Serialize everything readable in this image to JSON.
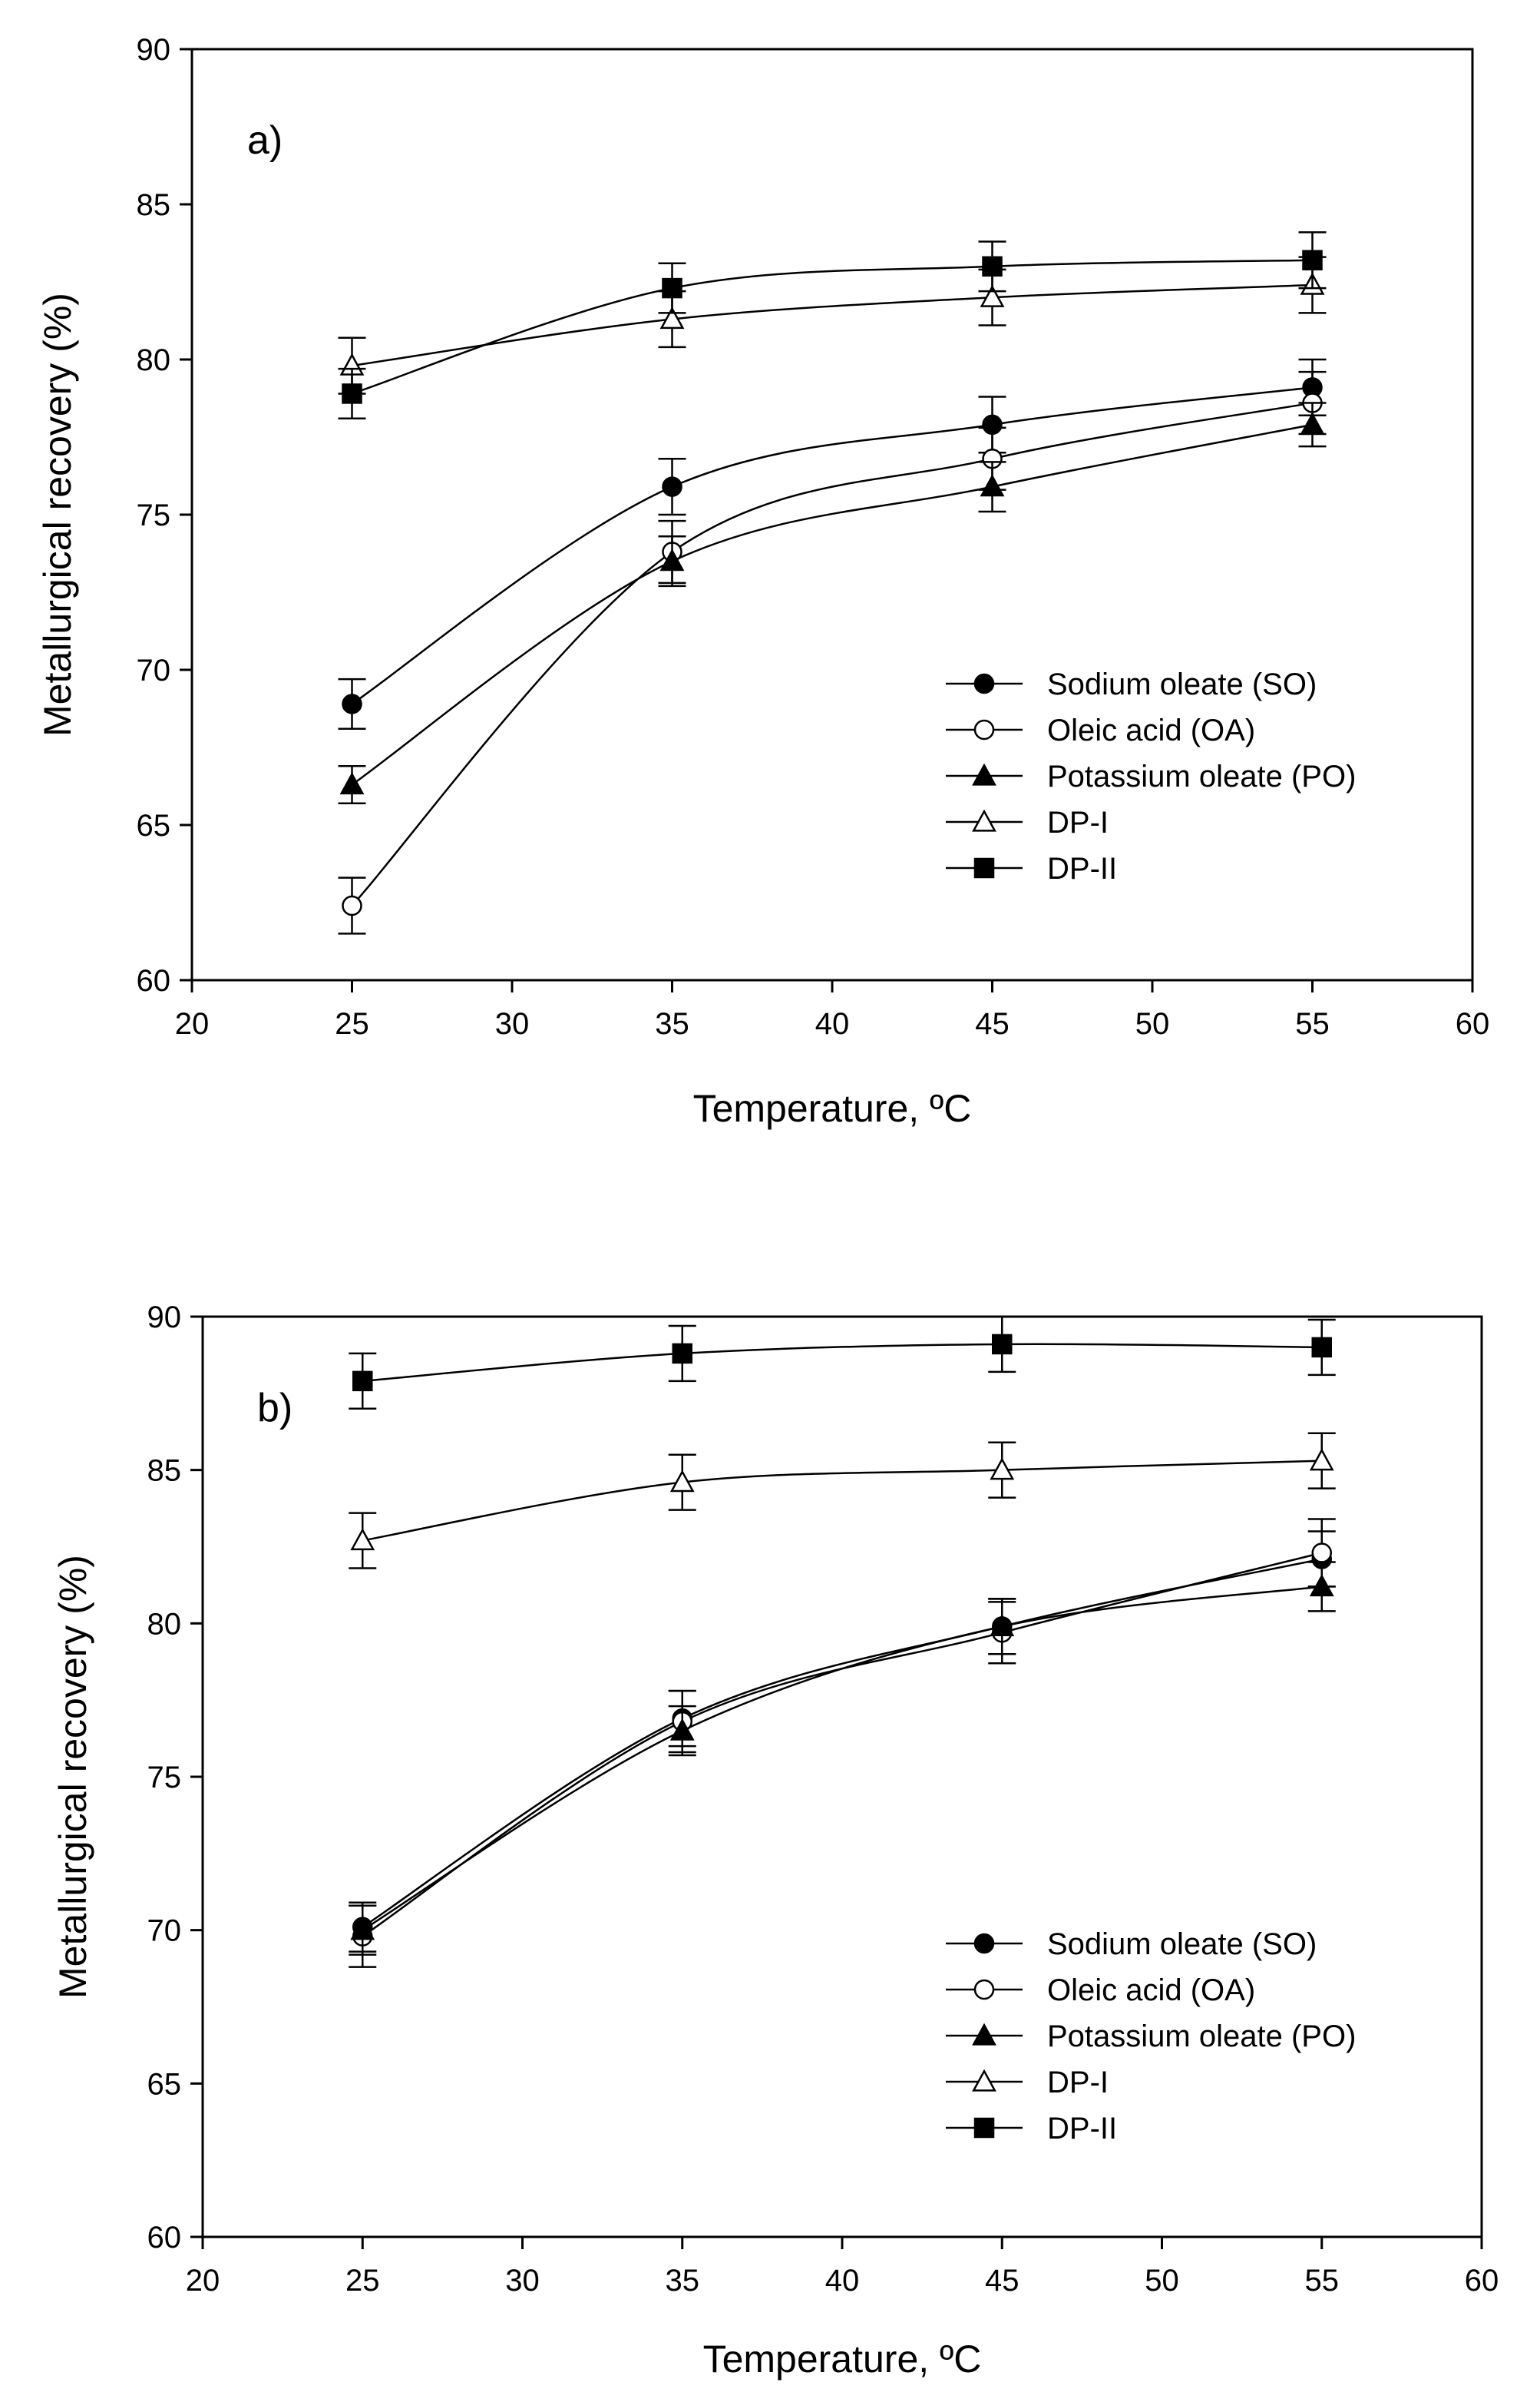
{
  "chart_data": [
    {
      "type": "line",
      "title": "",
      "panel_label": "a)",
      "xlabel": "Temperature, ºC",
      "ylabel": "Metallurgical recovery (%)",
      "xlim": [
        20,
        60
      ],
      "ylim": [
        60,
        90
      ],
      "xticks": [
        20,
        25,
        30,
        35,
        40,
        45,
        50,
        55,
        60
      ],
      "yticks": [
        60,
        65,
        70,
        75,
        80,
        85,
        90
      ],
      "x": [
        25,
        35,
        45,
        55
      ],
      "grid": false,
      "legend_position": "bottom-right",
      "series": [
        {
          "name": "Sodium oleate (SO)",
          "marker": "filled-circle",
          "values": [
            68.9,
            75.9,
            77.9,
            79.1
          ],
          "error": [
            0.8,
            0.9,
            0.9,
            0.9
          ]
        },
        {
          "name": "Oleic acid (OA)",
          "marker": "open-circle",
          "values": [
            62.4,
            73.8,
            76.8,
            78.6
          ],
          "error": [
            0.9,
            1.0,
            1.0,
            1.0
          ]
        },
        {
          "name": "Potassium oleate (PO)",
          "marker": "filled-triangle",
          "values": [
            66.3,
            73.5,
            75.9,
            77.9
          ],
          "error": [
            0.6,
            0.8,
            0.8,
            0.7
          ]
        },
        {
          "name": "DP-I",
          "marker": "open-triangle",
          "values": [
            79.8,
            81.3,
            82.0,
            82.4
          ],
          "error": [
            0.9,
            0.9,
            0.9,
            0.9
          ]
        },
        {
          "name": "DP-II",
          "marker": "filled-square",
          "values": [
            78.9,
            82.3,
            83.0,
            83.2
          ],
          "error": [
            0.8,
            0.8,
            0.8,
            0.9
          ]
        }
      ]
    },
    {
      "type": "line",
      "title": "",
      "panel_label": "b)",
      "xlabel": "Temperature, ºC",
      "ylabel": "Metallurgical recovery (%)",
      "xlim": [
        20,
        60
      ],
      "ylim": [
        60,
        90
      ],
      "xticks": [
        20,
        25,
        30,
        35,
        40,
        45,
        50,
        55,
        60
      ],
      "yticks": [
        60,
        65,
        70,
        75,
        80,
        85,
        90
      ],
      "x": [
        25,
        35,
        45,
        55
      ],
      "grid": false,
      "legend_position": "bottom-right",
      "series": [
        {
          "name": "Sodium oleate (SO)",
          "marker": "filled-circle",
          "values": [
            70.1,
            76.9,
            79.9,
            82.1
          ],
          "error": [
            0.8,
            0.9,
            0.9,
            0.9
          ]
        },
        {
          "name": "Oleic acid (OA)",
          "marker": "open-circle",
          "values": [
            69.8,
            76.8,
            79.7,
            82.3
          ],
          "error": [
            1.0,
            1.0,
            1.0,
            1.1
          ]
        },
        {
          "name": "Potassium oleate (PO)",
          "marker": "filled-triangle",
          "values": [
            70.0,
            76.5,
            79.9,
            81.2
          ],
          "error": [
            0.8,
            0.8,
            0.9,
            0.8
          ]
        },
        {
          "name": "DP-I",
          "marker": "open-triangle",
          "values": [
            82.7,
            84.6,
            85.0,
            85.3
          ],
          "error": [
            0.9,
            0.9,
            0.9,
            0.9
          ]
        },
        {
          "name": "DP-II",
          "marker": "filled-square",
          "values": [
            87.9,
            88.8,
            89.1,
            89.0
          ],
          "error": [
            0.9,
            0.9,
            0.9,
            0.9
          ]
        }
      ]
    }
  ]
}
